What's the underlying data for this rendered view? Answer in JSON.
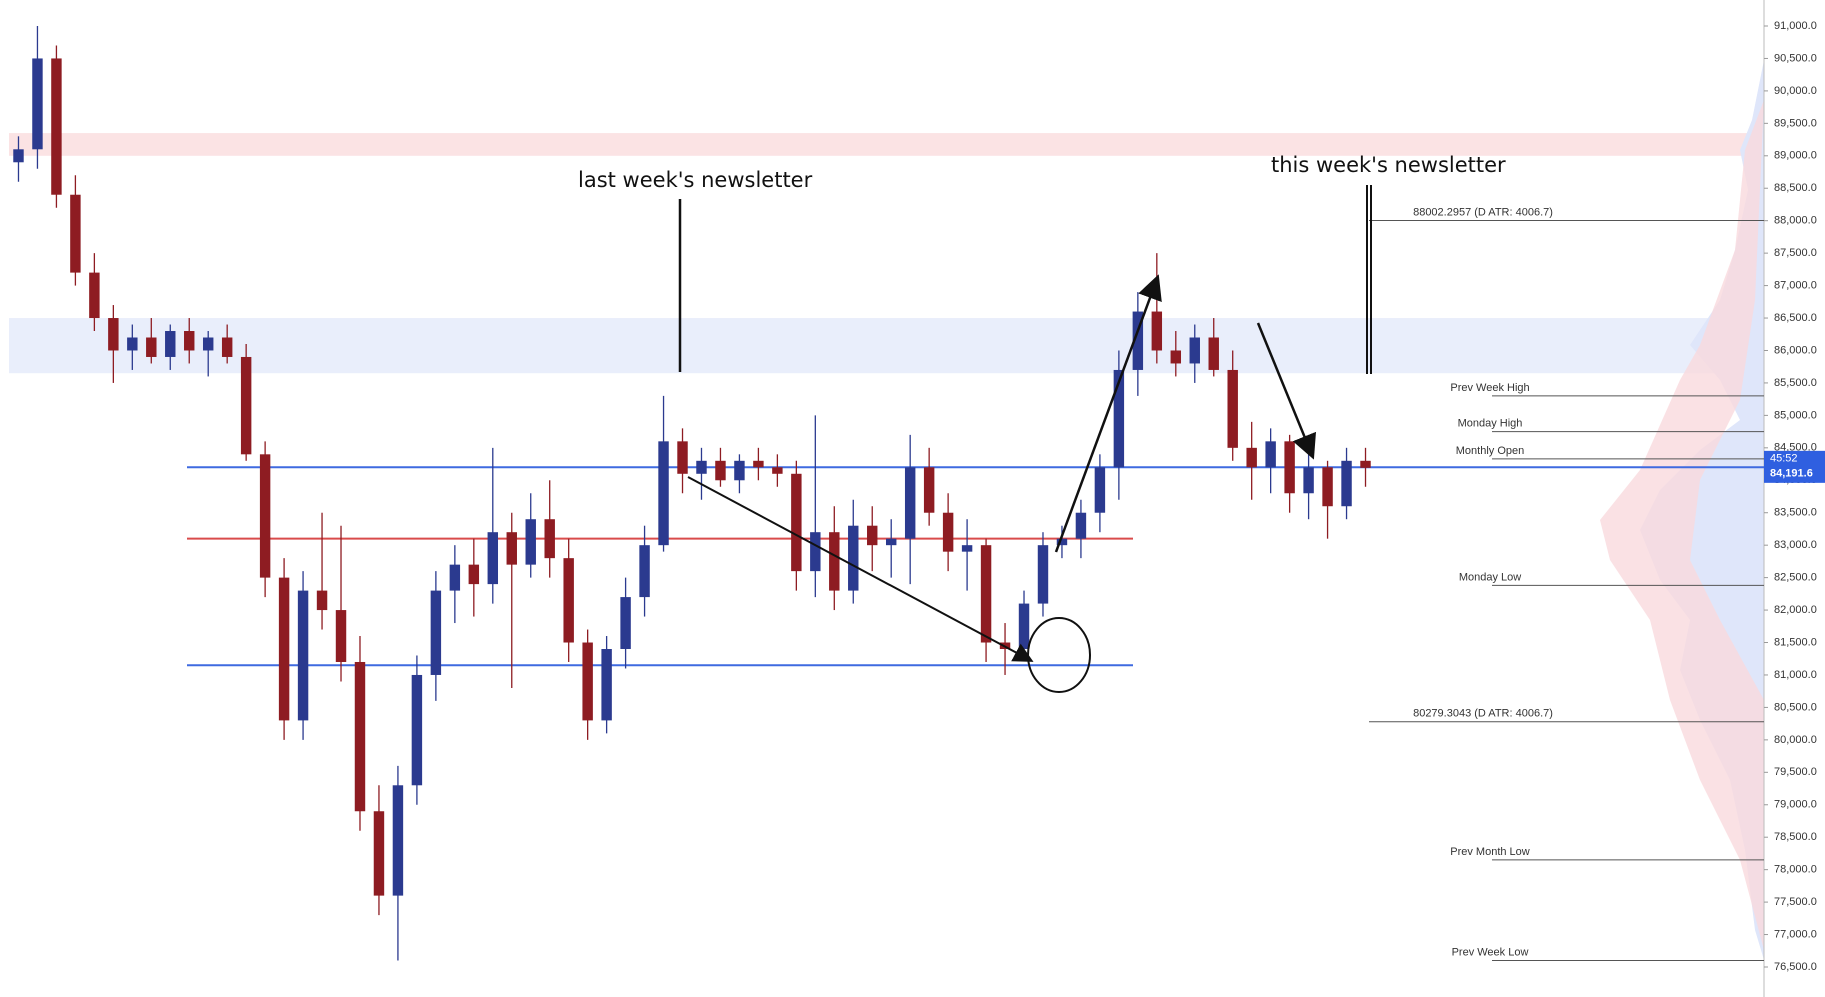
{
  "chart_data": {
    "type": "candlestick",
    "ylim": [
      76500,
      91000
    ],
    "yticks": [
      {
        "value": 76500,
        "label": "76,500.0"
      },
      {
        "value": 77000,
        "label": "77,000.0"
      },
      {
        "value": 77500,
        "label": "77,500.0"
      },
      {
        "value": 78000,
        "label": "78,000.0"
      },
      {
        "value": 78500,
        "label": "78,500.0"
      },
      {
        "value": 79000,
        "label": "79,000.0"
      },
      {
        "value": 79500,
        "label": "79,500.0"
      },
      {
        "value": 80000,
        "label": "80,000.0"
      },
      {
        "value": 80500,
        "label": "80,500.0"
      },
      {
        "value": 81000,
        "label": "81,000.0"
      },
      {
        "value": 81500,
        "label": "81,500.0"
      },
      {
        "value": 82000,
        "label": "82,000.0"
      },
      {
        "value": 82500,
        "label": "82,500.0"
      },
      {
        "value": 83000,
        "label": "83,000.0"
      },
      {
        "value": 83500,
        "label": "83,500.0"
      },
      {
        "value": 84000,
        "label": "84,000.0"
      },
      {
        "value": 84500,
        "label": "84,500.0"
      },
      {
        "value": 85000,
        "label": "85,000.0"
      },
      {
        "value": 85500,
        "label": "85,500.0"
      },
      {
        "value": 86000,
        "label": "86,000.0"
      },
      {
        "value": 86500,
        "label": "86,500.0"
      },
      {
        "value": 87000,
        "label": "87,000.0"
      },
      {
        "value": 87500,
        "label": "87,500.0"
      },
      {
        "value": 88000,
        "label": "88,000.0"
      },
      {
        "value": 88500,
        "label": "88,500.0"
      },
      {
        "value": 89000,
        "label": "89,000.0"
      },
      {
        "value": 89500,
        "label": "89,500.0"
      },
      {
        "value": 90000,
        "label": "90,000.0"
      },
      {
        "value": 90500,
        "label": "90,500.0"
      },
      {
        "value": 91000,
        "label": "91,000.0"
      }
    ],
    "up_color": "#2b3a8f",
    "down_color": "#8e1c22",
    "open": [
      88900,
      89100,
      90500,
      88400,
      87200,
      86500,
      86000,
      86200,
      85900,
      86300,
      86000,
      86200,
      85900,
      84400,
      82500,
      80300,
      82300,
      82000,
      81200,
      78900,
      77600,
      79300,
      81000,
      82300,
      82700,
      82400,
      83200,
      82700,
      83400,
      82800,
      81500,
      80300,
      81400,
      82200,
      83000,
      84600,
      84100,
      84300,
      84000,
      84300,
      84200,
      84100,
      82600,
      83200,
      82300,
      83300,
      83000,
      83100,
      84200,
      83500,
      82900,
      83000,
      81500,
      81400,
      82100,
      83000,
      83100,
      83500,
      84200,
      85700,
      86600,
      86000,
      85800,
      86200,
      85700,
      84500,
      84200,
      84600,
      83800,
      84200,
      83600,
      84300
    ],
    "high": [
      89300,
      91000,
      90700,
      88700,
      87500,
      86700,
      86400,
      86500,
      86400,
      86500,
      86300,
      86400,
      86100,
      84600,
      82800,
      82600,
      83500,
      83300,
      81600,
      79300,
      79600,
      81300,
      82600,
      83000,
      83100,
      84500,
      83500,
      83800,
      84000,
      83100,
      81700,
      81600,
      82500,
      83300,
      85300,
      84800,
      84500,
      84500,
      84400,
      84500,
      84400,
      84300,
      85000,
      83600,
      83700,
      83600,
      83400,
      84700,
      84500,
      83800,
      83400,
      83100,
      81800,
      82300,
      83200,
      83300,
      83700,
      84400,
      86000,
      86900,
      87500,
      86300,
      86400,
      86500,
      86000,
      84900,
      84800,
      84700,
      84400,
      84300,
      84500,
      84500
    ],
    "low": [
      88600,
      88800,
      88200,
      87000,
      86300,
      85500,
      85700,
      85800,
      85700,
      85800,
      85600,
      85800,
      84300,
      82200,
      80000,
      80000,
      81700,
      80900,
      78600,
      77300,
      76600,
      79000,
      80600,
      81800,
      81900,
      82100,
      80800,
      82500,
      82500,
      81200,
      80000,
      80100,
      81100,
      81900,
      82900,
      83800,
      83700,
      83900,
      83800,
      84000,
      83900,
      82300,
      82200,
      82000,
      82100,
      82600,
      82500,
      82400,
      83300,
      82600,
      82300,
      81200,
      81000,
      81300,
      81900,
      82800,
      82800,
      83200,
      83700,
      85300,
      85800,
      85600,
      85500,
      85600,
      84300,
      83700,
      83800,
      83500,
      83400,
      83100,
      83400,
      83900
    ],
    "close": [
      89100,
      90500,
      88400,
      87200,
      86500,
      86000,
      86200,
      85900,
      86300,
      86000,
      86200,
      85900,
      84400,
      82500,
      80300,
      82300,
      82000,
      81200,
      78900,
      77600,
      79300,
      81000,
      82300,
      82700,
      82400,
      83200,
      82700,
      83400,
      82800,
      81500,
      80300,
      81400,
      82200,
      83000,
      84600,
      84100,
      84300,
      84000,
      84300,
      84200,
      84100,
      82600,
      83200,
      82300,
      83300,
      83000,
      83100,
      84200,
      83500,
      82900,
      83000,
      81500,
      81400,
      82100,
      83000,
      83100,
      83500,
      84200,
      85700,
      86600,
      86000,
      85800,
      86200,
      85700,
      84500,
      84200,
      84600,
      83800,
      84200,
      83600,
      84300,
      84191.6
    ],
    "zones": [
      {
        "from": 89000,
        "to": 89350,
        "color": "#fbe3e4"
      },
      {
        "from": 85650,
        "to": 86500,
        "color": "#e9eefb"
      }
    ],
    "lines": [
      {
        "value": 84200,
        "color": "#3f6ae0",
        "extend": true
      },
      {
        "value": 83100,
        "color": "#d94b4b",
        "extend": false
      },
      {
        "value": 81150,
        "color": "#3f6ae0",
        "extend": false
      }
    ],
    "levels": [
      {
        "label": "88002.2957 (D ATR: 4006.7)",
        "value": 88002.2957,
        "long": true
      },
      {
        "label": "Prev Week High",
        "value": 85300,
        "long": false
      },
      {
        "label": "Monday High",
        "value": 84750,
        "long": false
      },
      {
        "label": "Monthly Open",
        "value": 84330,
        "long": false
      },
      {
        "label": "Monday Low",
        "value": 82380,
        "long": false
      },
      {
        "label": "80279.3043 (D ATR: 4006.7)",
        "value": 80279.3043,
        "long": true
      },
      {
        "label": "Prev Month Low",
        "value": 78150,
        "long": false
      },
      {
        "label": "Prev Week Low",
        "value": 76600,
        "long": false
      }
    ],
    "last_price": {
      "value": 84191.6,
      "label": "84,191.6"
    },
    "countdown": "45:52",
    "annotations": [
      "last week's newsletter",
      "this week's newsletter"
    ]
  }
}
